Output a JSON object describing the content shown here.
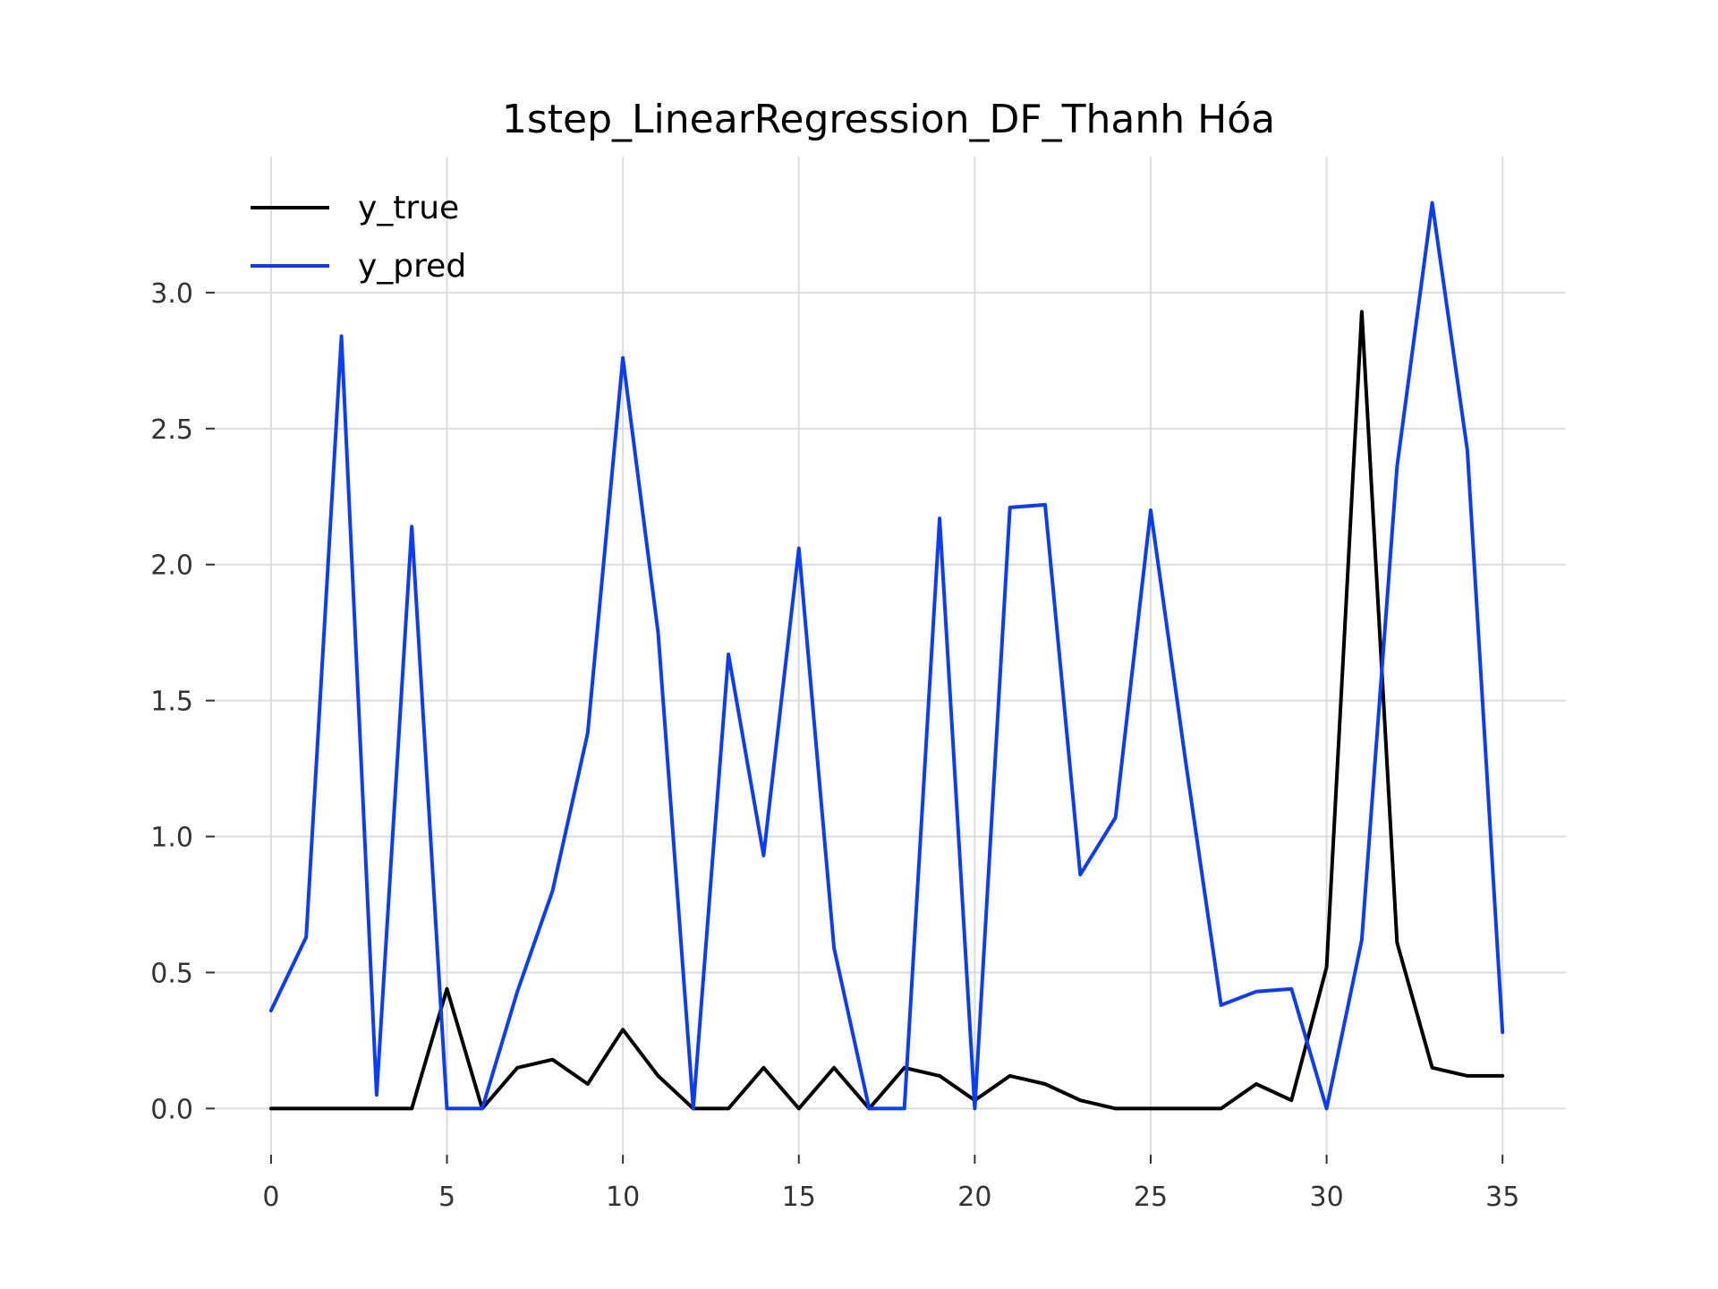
{
  "chart_data": {
    "type": "line",
    "title": "1step_LinearRegression_DF_Thanh Hóa",
    "xlabel": "",
    "ylabel": "",
    "xlim": [
      -1.6,
      36.8
    ],
    "ylim": [
      -0.17,
      3.5
    ],
    "x_ticks": [
      0,
      5,
      10,
      15,
      20,
      25,
      30,
      35
    ],
    "y_ticks": [
      0.0,
      0.5,
      1.0,
      1.5,
      2.0,
      2.5,
      3.0
    ],
    "y_tick_labels": [
      "0.0",
      "0.5",
      "1.0",
      "1.5",
      "2.0",
      "2.5",
      "3.0"
    ],
    "grid": true,
    "legend_position": "upper-left",
    "x": [
      0,
      1,
      2,
      3,
      4,
      5,
      6,
      7,
      8,
      9,
      10,
      11,
      12,
      13,
      14,
      15,
      16,
      17,
      18,
      19,
      20,
      21,
      22,
      23,
      24,
      25,
      26,
      27,
      28,
      29,
      30,
      31,
      32,
      33,
      34,
      35
    ],
    "series": [
      {
        "name": "y_true",
        "color": "#000000",
        "values": [
          0,
          0,
          0,
          0,
          0,
          0.44,
          0,
          0.15,
          0.18,
          0.09,
          0.29,
          0.12,
          0,
          0,
          0.15,
          0,
          0.15,
          0,
          0.15,
          0.12,
          0.03,
          0.12,
          0.09,
          0.03,
          0,
          0,
          0,
          0,
          0.09,
          0.03,
          0.52,
          2.93,
          0.61,
          0.15,
          0.12,
          0.12
        ]
      },
      {
        "name": "y_pred",
        "color": "#0a3cff",
        "values": [
          0.36,
          0.63,
          2.84,
          0.05,
          2.14,
          0,
          0,
          0.43,
          0.8,
          1.38,
          2.76,
          1.75,
          0,
          1.67,
          0.93,
          2.06,
          0.59,
          0,
          0,
          2.17,
          0,
          2.21,
          2.22,
          0.86,
          1.07,
          2.2,
          1.27,
          0.38,
          0.43,
          0.44,
          0,
          0.62,
          2.36,
          3.33,
          2.42,
          0.28
        ]
      }
    ]
  }
}
